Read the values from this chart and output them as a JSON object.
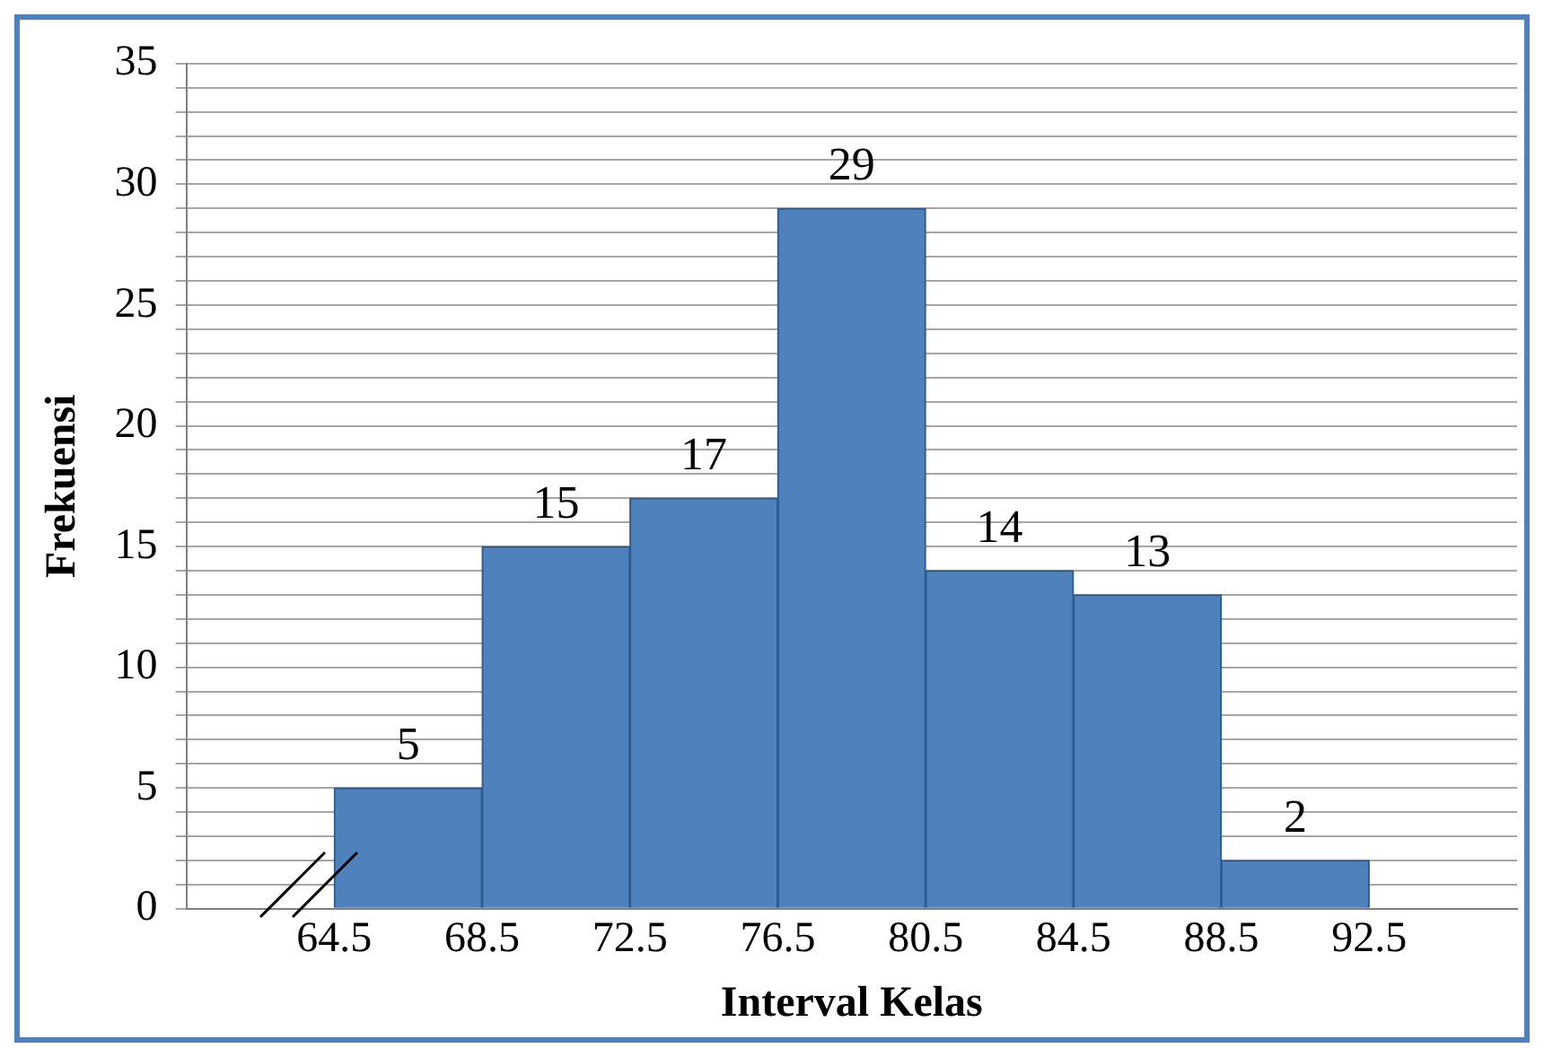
{
  "chart_data": {
    "type": "histogram",
    "xlabel": "Interval Kelas",
    "ylabel": "Frekuensi",
    "bins": [
      64.5,
      68.5,
      72.5,
      76.5,
      80.5,
      84.5,
      88.5,
      92.5
    ],
    "values": [
      5,
      15,
      17,
      29,
      14,
      13,
      2
    ],
    "color": "#4f81bd",
    "xlim": [
      60.5,
      96.5
    ],
    "xticks": [
      64.5,
      68.5,
      72.5,
      76.5,
      80.5,
      84.5,
      88.5,
      92.5
    ],
    "ylim": [
      0,
      35
    ],
    "yticks": [
      0,
      {
        "value": 1,
        "label": null
      },
      {
        "value": 2,
        "label": null
      },
      {
        "value": 3,
        "label": null
      },
      {
        "value": 4,
        "label": null
      },
      5,
      {
        "value": 6,
        "label": null
      },
      {
        "value": 7,
        "label": null
      },
      {
        "value": 8,
        "label": null
      },
      {
        "value": 9,
        "label": null
      },
      10,
      {
        "value": 11,
        "label": null
      },
      {
        "value": 12,
        "label": null
      },
      {
        "value": 13,
        "label": null
      },
      {
        "value": 14,
        "label": null
      },
      15,
      {
        "value": 16,
        "label": null
      },
      {
        "value": 17,
        "label": null
      },
      {
        "value": 18,
        "label": null
      },
      {
        "value": 19,
        "label": null
      },
      20,
      {
        "value": 21,
        "label": null
      },
      {
        "value": 22,
        "label": null
      },
      {
        "value": 23,
        "label": null
      },
      {
        "value": 24,
        "label": null
      },
      25,
      {
        "value": 26,
        "label": null
      },
      {
        "value": 27,
        "label": null
      },
      {
        "value": 28,
        "label": null
      },
      {
        "value": 29,
        "label": null
      },
      30,
      {
        "value": 31,
        "label": null
      },
      {
        "value": 32,
        "label": null
      },
      {
        "value": 33,
        "label": null
      },
      {
        "value": 34,
        "label": null
      },
      35
    ],
    "grid": "y",
    "data_labels": true,
    "legend": false
  }
}
